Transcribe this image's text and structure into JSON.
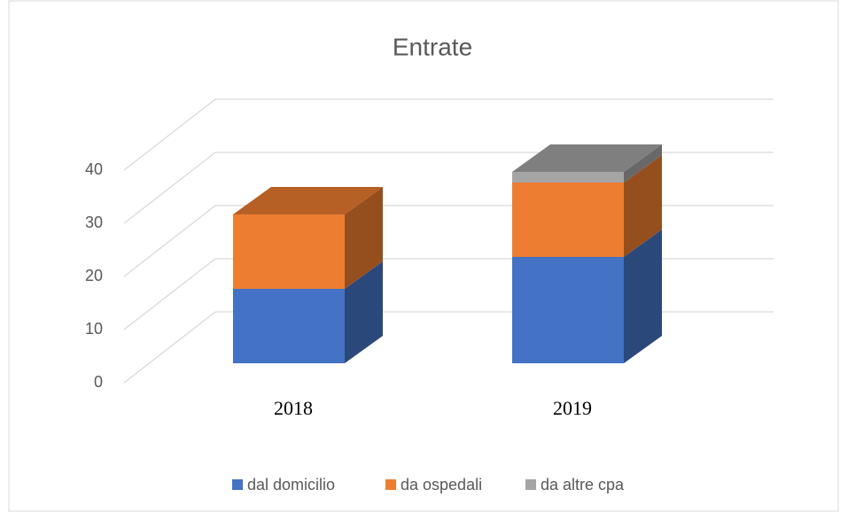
{
  "chart_data": {
    "type": "bar3d_stacked",
    "title": "Entrate",
    "categories": [
      "2018",
      "2019"
    ],
    "series": [
      {
        "name": "dal domicilio",
        "color": "#4472c4",
        "values": [
          14,
          20
        ]
      },
      {
        "name": "da ospedali",
        "color": "#ed7d31",
        "values": [
          14,
          14
        ]
      },
      {
        "name": "da altre cpa",
        "color": "#a5a5a5",
        "values": [
          0,
          2
        ]
      }
    ],
    "ylim": [
      0,
      40
    ],
    "yticks": [
      0,
      10,
      20,
      30,
      40
    ],
    "grid": true,
    "legend": "bottom"
  }
}
